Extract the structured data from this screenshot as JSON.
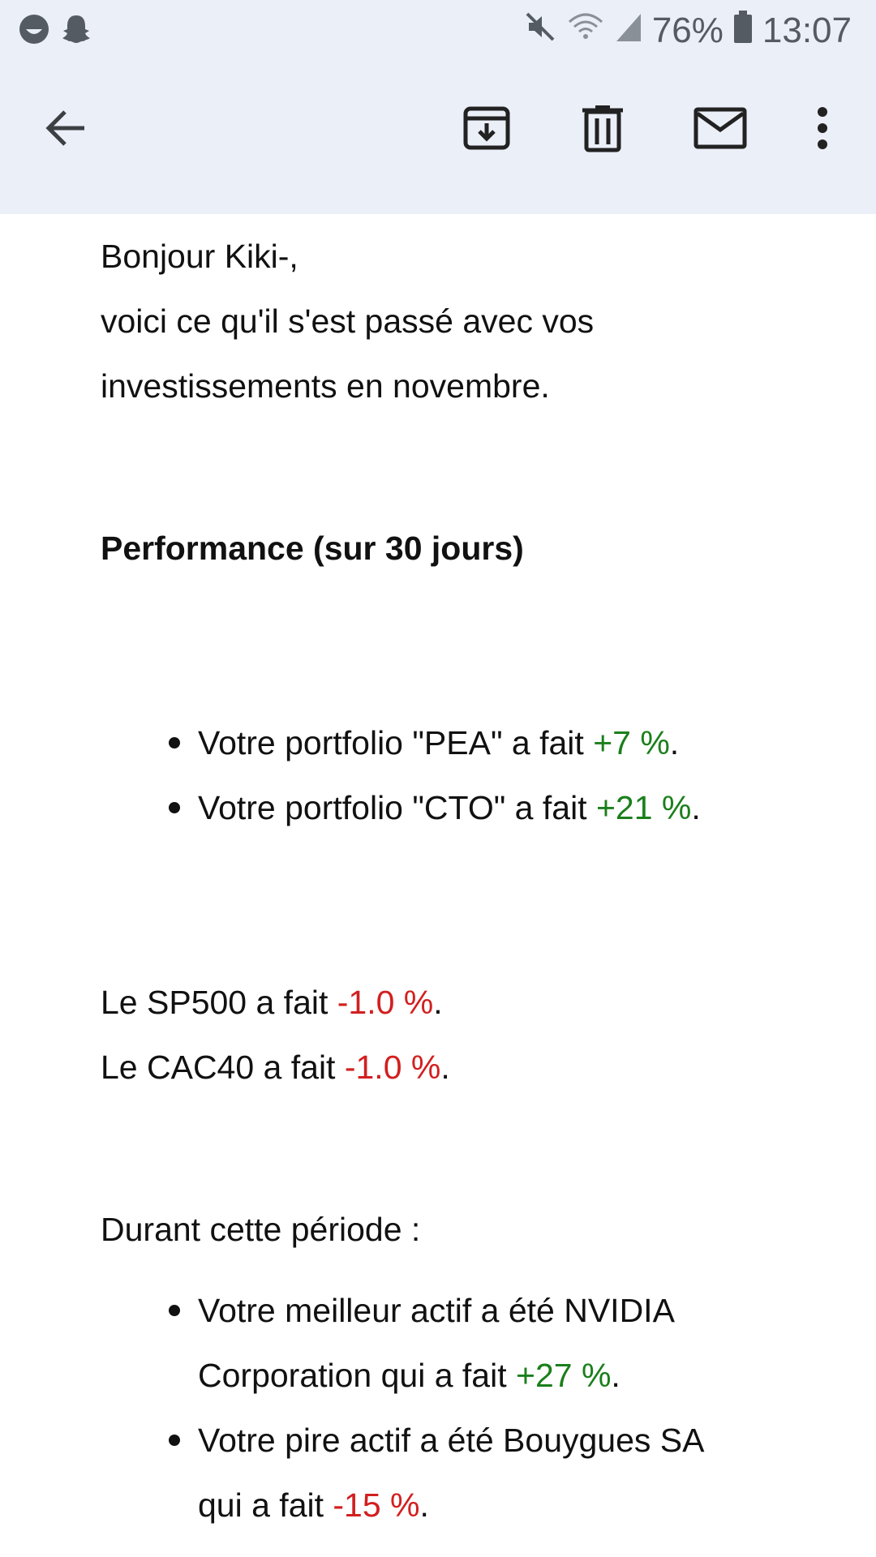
{
  "status_bar": {
    "battery": "76%",
    "time": "13:07",
    "left_icons": [
      "smiley-icon",
      "snapchat-ghost-icon"
    ],
    "right_icons": [
      "mute-icon",
      "wifi-icon",
      "signal-icon",
      "battery-icon"
    ]
  },
  "toolbar": {
    "icons": [
      "back-arrow-icon",
      "archive-icon",
      "trash-icon",
      "mail-icon",
      "more-vert-icon"
    ]
  },
  "email": {
    "greeting": "Bonjour Kiki-,",
    "intro_line1": "voici ce qu'il s'est passé avec vos",
    "intro_line2": "investissements en novembre.",
    "performance_heading": "Performance (sur 30 jours)",
    "portfolios": [
      {
        "prefix": "Votre portfolio \"PEA\" a fait ",
        "value": "+7 %",
        "suffix": "."
      },
      {
        "prefix": "Votre portfolio \"CTO\" a fait ",
        "value": "+21 %",
        "suffix": "."
      }
    ],
    "indices": [
      {
        "prefix": "Le SP500 a fait ",
        "value": "-1.0 %",
        "suffix": "."
      },
      {
        "prefix": "Le CAC40 a fait ",
        "value": "-1.0 %",
        "suffix": "."
      }
    ],
    "period_heading": "Durant cette période :",
    "highlights": [
      {
        "line1": "Votre meilleur actif a été NVIDIA",
        "prefix": "Corporation qui a fait ",
        "value": "+27 %",
        "suffix": "."
      },
      {
        "line1": "Votre pire actif a été Bouygues SA",
        "prefix": "qui a fait ",
        "value": "-15 %",
        "suffix": "."
      }
    ]
  },
  "colors": {
    "positive": "#1b7f1b",
    "negative": "#d21f1f",
    "header_bg": "#ebeff8"
  }
}
